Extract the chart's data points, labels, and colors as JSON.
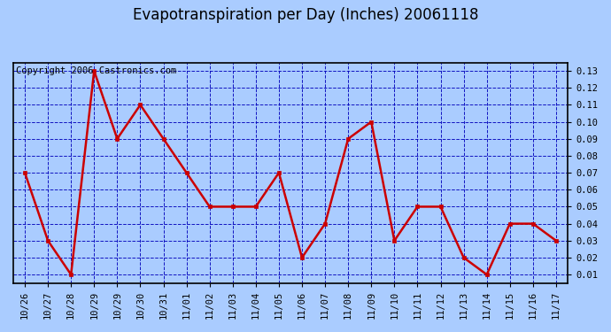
{
  "title": "Evapotranspiration per Day (Inches) 20061118",
  "copyright": "Copyright 2006 Castronics.com",
  "x_labels": [
    "10/26",
    "10/27",
    "10/28",
    "10/29",
    "10/29",
    "10/30",
    "10/31",
    "11/01",
    "11/02",
    "11/03",
    "11/04",
    "11/05",
    "11/06",
    "11/07",
    "11/08",
    "11/09",
    "11/10",
    "11/11",
    "11/12",
    "11/13",
    "11/14",
    "11/15",
    "11/16",
    "11/17"
  ],
  "values": [
    0.07,
    0.03,
    0.01,
    0.13,
    0.09,
    0.11,
    0.09,
    0.07,
    0.05,
    0.05,
    0.05,
    0.07,
    0.02,
    0.04,
    0.09,
    0.1,
    0.03,
    0.05,
    0.05,
    0.02,
    0.01,
    0.04,
    0.04,
    0.03
  ],
  "ylim": [
    0.005,
    0.135
  ],
  "yticks": [
    0.01,
    0.02,
    0.03,
    0.04,
    0.05,
    0.06,
    0.07,
    0.08,
    0.09,
    0.1,
    0.11,
    0.12,
    0.13
  ],
  "line_color": "#cc0000",
  "marker_color": "#cc0000",
  "bg_color": "#aaccff",
  "plot_bg": "#aaccff",
  "grid_color": "#0000bb",
  "border_color": "#000000",
  "title_fontsize": 12,
  "tick_fontsize": 7.5,
  "copyright_fontsize": 7.5
}
